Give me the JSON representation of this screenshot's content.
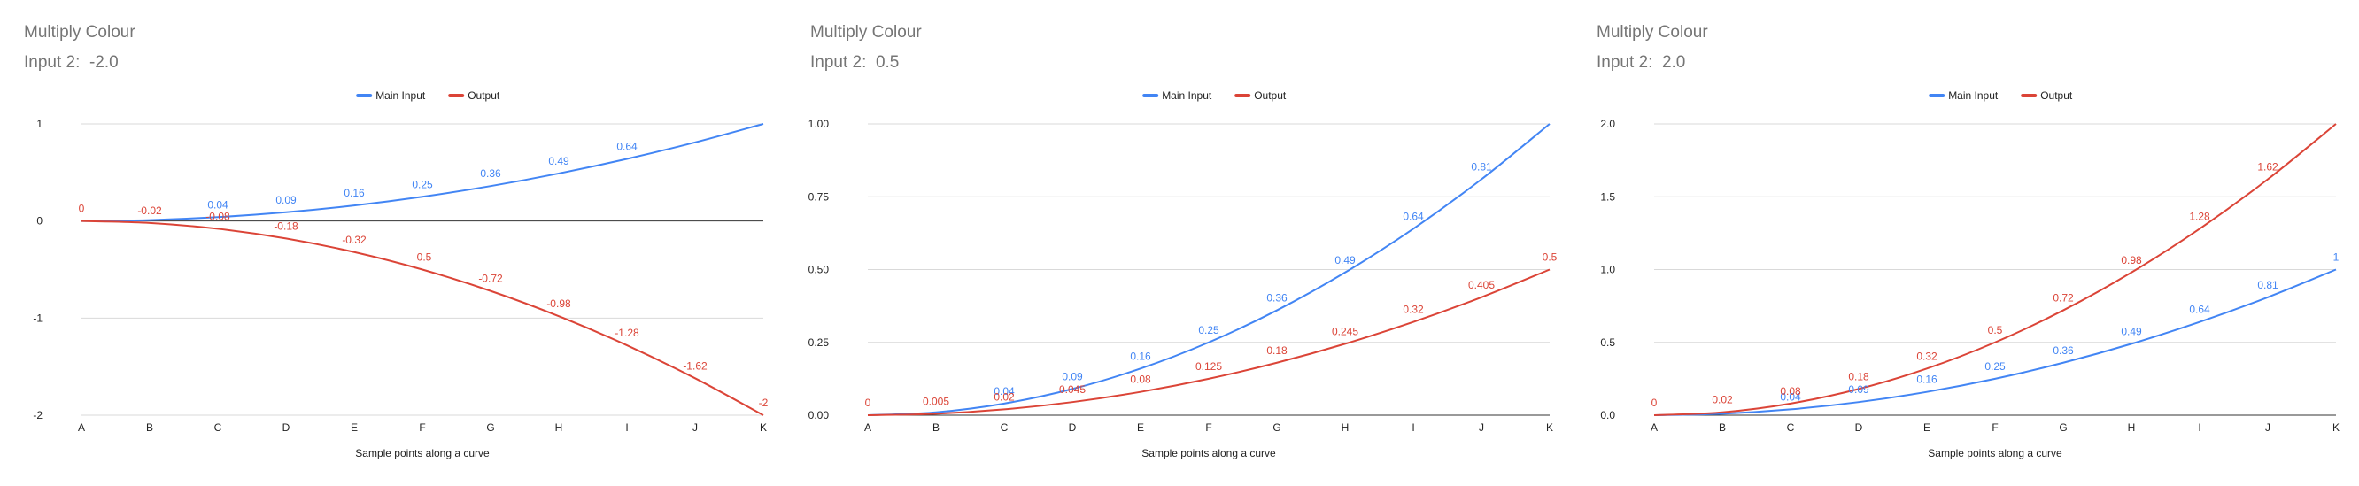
{
  "colors": {
    "main": "#4285f4",
    "output": "#db4437",
    "grid": "#d9d9d9",
    "axis": "#333333",
    "text": "#222222",
    "title": "#757575"
  },
  "chart_data": [
    {
      "type": "line",
      "title": "Multiply Colour",
      "subtitle": "Input 2:  -2.0",
      "xlabel": "Sample points along a curve",
      "ylabel": "",
      "legend": "top",
      "grid": true,
      "categories": [
        "A",
        "B",
        "C",
        "D",
        "E",
        "F",
        "G",
        "H",
        "I",
        "J",
        "K"
      ],
      "ylim": [
        -2,
        1
      ],
      "yticks": [
        -2,
        -1,
        0,
        1
      ],
      "ytick_labels": [
        "-2",
        "-1",
        "0",
        "1"
      ],
      "series": [
        {
          "name": "Main Input",
          "color": "#4285f4",
          "values": [
            0,
            0.01,
            0.04,
            0.09,
            0.16,
            0.25,
            0.36,
            0.49,
            0.64,
            0.81,
            1
          ],
          "labels": [
            "",
            "",
            "0.04",
            "0.09",
            "0.16",
            "0.25",
            "0.36",
            "0.49",
            "0.64",
            "",
            ""
          ]
        },
        {
          "name": "Output",
          "color": "#db4437",
          "values": [
            0,
            -0.02,
            -0.08,
            -0.18,
            -0.32,
            -0.5,
            -0.72,
            -0.98,
            -1.28,
            -1.62,
            -2
          ],
          "labels": [
            "0",
            "-0.02",
            "-0.08",
            "-0.18",
            "-0.32",
            "-0.5",
            "-0.72",
            "-0.98",
            "-1.28",
            "-1.62",
            "-2"
          ]
        }
      ]
    },
    {
      "type": "line",
      "title": "Multiply Colour",
      "subtitle": "Input 2:  0.5",
      "xlabel": "Sample points along a curve",
      "ylabel": "",
      "legend": "top",
      "grid": true,
      "categories": [
        "A",
        "B",
        "C",
        "D",
        "E",
        "F",
        "G",
        "H",
        "I",
        "J",
        "K"
      ],
      "ylim": [
        0,
        1
      ],
      "yticks": [
        0,
        0.25,
        0.5,
        0.75,
        1
      ],
      "ytick_labels": [
        "0.00",
        "0.25",
        "0.50",
        "0.75",
        "1.00"
      ],
      "series": [
        {
          "name": "Main Input",
          "color": "#4285f4",
          "values": [
            0,
            0.01,
            0.04,
            0.09,
            0.16,
            0.25,
            0.36,
            0.49,
            0.64,
            0.81,
            1
          ],
          "labels": [
            "",
            "",
            "0.04",
            "0.09",
            "0.16",
            "0.25",
            "0.36",
            "0.49",
            "0.64",
            "0.81",
            ""
          ]
        },
        {
          "name": "Output",
          "color": "#db4437",
          "values": [
            0,
            0.005,
            0.02,
            0.045,
            0.08,
            0.125,
            0.18,
            0.245,
            0.32,
            0.405,
            0.5
          ],
          "labels": [
            "0",
            "0.005",
            "0.02",
            "0.045",
            "0.08",
            "0.125",
            "0.18",
            "0.245",
            "0.32",
            "0.405",
            "0.5"
          ]
        }
      ]
    },
    {
      "type": "line",
      "title": "Multiply Colour",
      "subtitle": "Input 2:  2.0",
      "xlabel": "Sample points along a curve",
      "ylabel": "",
      "legend": "top",
      "grid": true,
      "categories": [
        "A",
        "B",
        "C",
        "D",
        "E",
        "F",
        "G",
        "H",
        "I",
        "J",
        "K"
      ],
      "ylim": [
        0,
        2
      ],
      "yticks": [
        0,
        0.5,
        1,
        1.5,
        2
      ],
      "ytick_labels": [
        "0.0",
        "0.5",
        "1.0",
        "1.5",
        "2.0"
      ],
      "series": [
        {
          "name": "Main Input",
          "color": "#4285f4",
          "values": [
            0,
            0.01,
            0.04,
            0.09,
            0.16,
            0.25,
            0.36,
            0.49,
            0.64,
            0.81,
            1
          ],
          "labels": [
            "",
            "",
            "0.04",
            "0.09",
            "0.16",
            "0.25",
            "0.36",
            "0.49",
            "0.64",
            "0.81",
            "1"
          ]
        },
        {
          "name": "Output",
          "color": "#db4437",
          "values": [
            0,
            0.02,
            0.08,
            0.18,
            0.32,
            0.5,
            0.72,
            0.98,
            1.28,
            1.62,
            2
          ],
          "labels": [
            "0",
            "0.02",
            "0.08",
            "0.18",
            "0.32",
            "0.5",
            "0.72",
            "0.98",
            "1.28",
            "1.62",
            ""
          ]
        }
      ]
    }
  ]
}
